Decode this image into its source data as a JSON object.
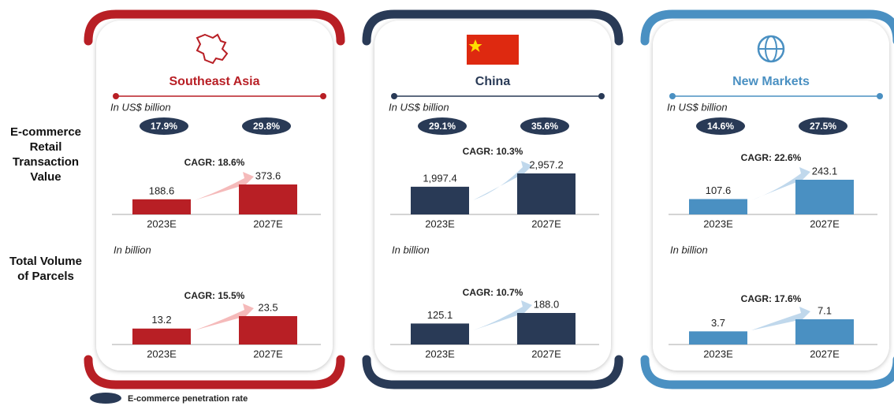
{
  "row_labels": [
    "E-commerce Retail Transaction Value",
    "Total Volume of Parcels"
  ],
  "legend": "E-commerce penetration rate",
  "panels": [
    {
      "name": "Southeast Asia",
      "color": "#b81f25",
      "arrow_color": "#f4b3b3",
      "unit_value": "In US$ billion",
      "unit_parcels": "In billion",
      "penetration": [
        "17.9%",
        "29.8%"
      ]
    },
    {
      "name": "China",
      "color": "#293a56",
      "arrow_color": "#b9d4ea",
      "unit_value": "In US$ billion",
      "unit_parcels": "In billion",
      "penetration": [
        "29.1%",
        "35.6%"
      ]
    },
    {
      "name": "New Markets",
      "color": "#4a90c2",
      "arrow_color": "#b9d4ea",
      "unit_value": "In US$ billion",
      "unit_parcels": "In billion",
      "penetration": [
        "14.6%",
        "27.5%"
      ]
    }
  ],
  "chart_data": [
    {
      "type": "bar",
      "annotation": "CAGR: 18.6%",
      "categories": [
        "2023E",
        "2027E"
      ],
      "values": [
        188.6,
        373.6
      ],
      "color": "#b81f25"
    },
    {
      "type": "bar",
      "annotation": "CAGR: 15.5%",
      "categories": [
        "2023E",
        "2027E"
      ],
      "values": [
        13.2,
        23.5
      ],
      "color": "#b81f25"
    },
    {
      "type": "bar",
      "annotation": "CAGR: 10.3%",
      "categories": [
        "2023E",
        "2027E"
      ],
      "values": [
        1997.4,
        2957.2
      ],
      "value_labels": [
        "1,997.4",
        "2,957.2"
      ],
      "color": "#293a56"
    },
    {
      "type": "bar",
      "annotation": "CAGR: 10.7%",
      "categories": [
        "2023E",
        "2027E"
      ],
      "values": [
        125.1,
        188.0
      ],
      "value_labels": [
        "125.1",
        "188.0"
      ],
      "color": "#293a56"
    },
    {
      "type": "bar",
      "annotation": "CAGR: 22.6%",
      "categories": [
        "2023E",
        "2027E"
      ],
      "values": [
        107.6,
        243.1
      ],
      "color": "#4a90c2"
    },
    {
      "type": "bar",
      "annotation": "CAGR: 17.6%",
      "categories": [
        "2023E",
        "2027E"
      ],
      "values": [
        3.7,
        7.1
      ],
      "color": "#4a90c2"
    }
  ]
}
